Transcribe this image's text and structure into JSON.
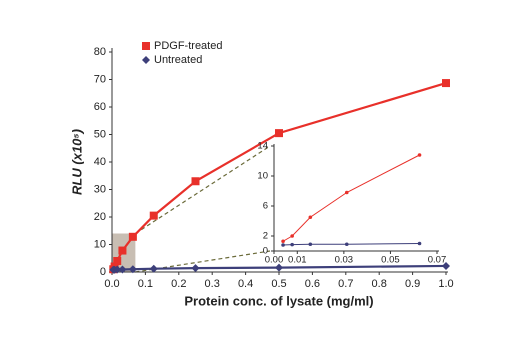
{
  "chart_data": [
    {
      "type": "line",
      "x_label": "Protein conc. of lysate (mg/ml)",
      "y_label": "RLU (x10⁵)",
      "x": [
        0.0039,
        0.0078,
        0.0156,
        0.03125,
        0.0625,
        0.125,
        0.25,
        0.5,
        1.0
      ],
      "series": [
        {
          "name": "PDGF-treated",
          "color": "#e8302a",
          "marker": "square",
          "values": [
            1,
            2,
            4,
            7.8,
            12.8,
            20.5,
            33,
            50.5,
            68.7
          ]
        },
        {
          "name": "Untreated",
          "color": "#3d3f7a",
          "marker": "diamond",
          "values": [
            0.8,
            0.8,
            0.9,
            0.9,
            1,
            1.2,
            1.4,
            1.6,
            2.2
          ]
        }
      ],
      "xlim": [
        0,
        1
      ],
      "xticks": [
        {
          "value": 0,
          "label": "0.0"
        },
        0.1,
        0.2,
        0.3,
        0.4,
        0.5,
        0.6,
        0.7,
        0.8,
        0.9,
        {
          "value": 1,
          "label": "1.0"
        }
      ],
      "ylim": [
        0,
        80
      ],
      "yticks": [
        0,
        10,
        20,
        30,
        40,
        50,
        60,
        70,
        80
      ],
      "legend": "upper left"
    },
    {
      "type": "line",
      "x": [
        0.0039,
        0.0078,
        0.0156,
        0.03125,
        0.0625
      ],
      "series": [
        {
          "color": "#e8302a",
          "marker": "dot",
          "values": [
            1.3,
            2,
            4.5,
            7.8,
            12.8
          ]
        },
        {
          "color": "#3d3f7a",
          "marker": "dot",
          "values": [
            0.8,
            0.85,
            0.9,
            0.9,
            1
          ]
        }
      ],
      "xlim": [
        0,
        0.07
      ],
      "xticks": [
        {
          "value": 0,
          "label": "0.00"
        },
        0.01,
        0.03,
        0.05,
        0.07
      ],
      "ylim": [
        0,
        14
      ],
      "yticks": [
        0,
        2,
        6,
        10,
        14
      ]
    }
  ]
}
